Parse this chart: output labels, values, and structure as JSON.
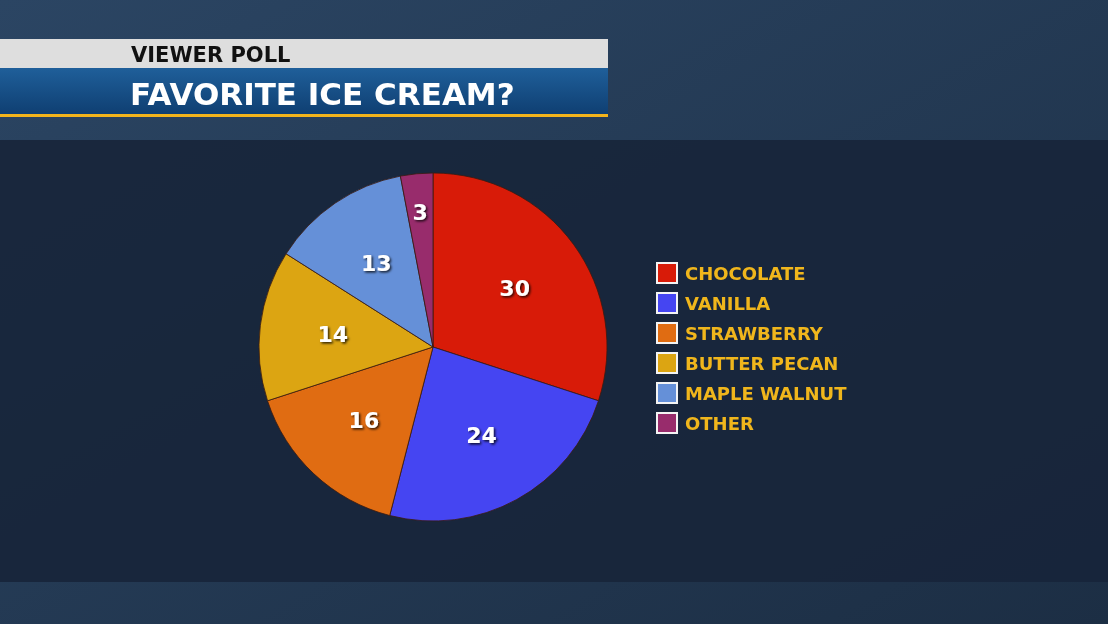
{
  "chart_data": {
    "type": "pie",
    "title": "FAVORITE ICE CREAM?",
    "subtitle": "VIEWER POLL",
    "categories": [
      "CHOCOLATE",
      "VANILLA",
      "STRAWBERRY",
      "BUTTER PECAN",
      "MAPLE WALNUT",
      "OTHER"
    ],
    "values": [
      30,
      24,
      16,
      14,
      13,
      3
    ],
    "colors": [
      "#d81b08",
      "#4545f2",
      "#e06c12",
      "#dca512",
      "#6590d8",
      "#982c6c"
    ],
    "data_labels": true,
    "legend": "right"
  }
}
